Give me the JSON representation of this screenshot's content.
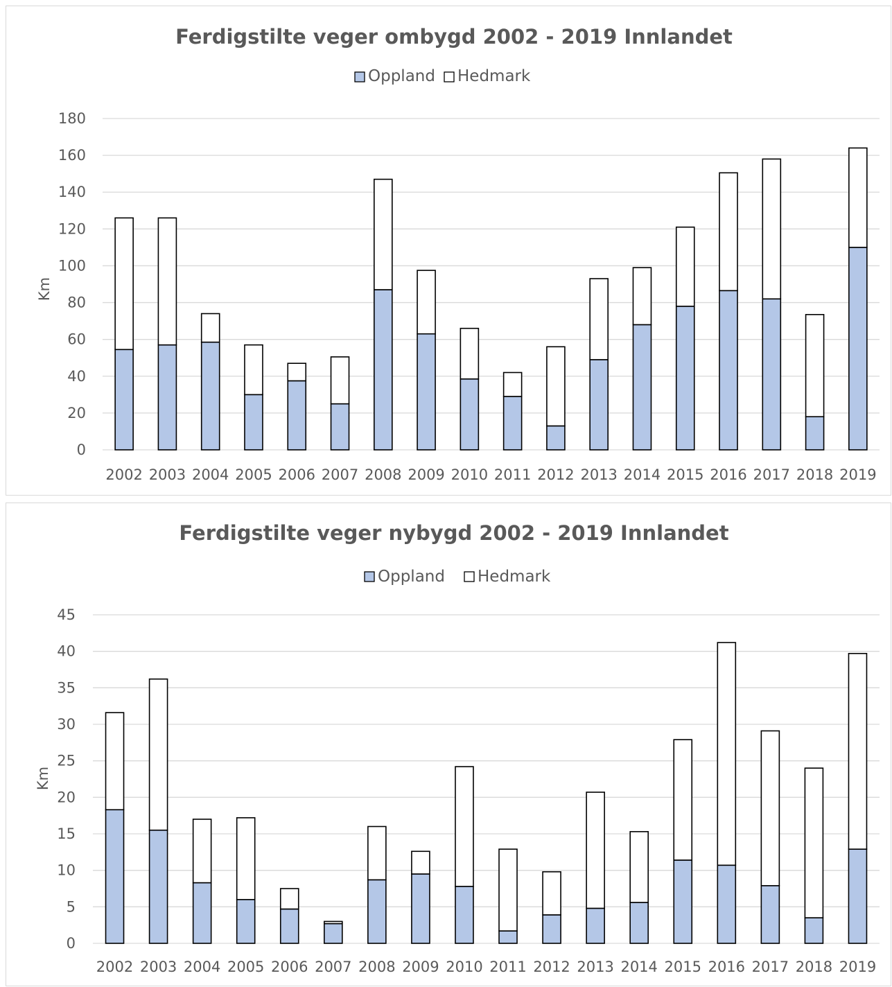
{
  "chart_data": [
    {
      "type": "bar",
      "stacked": true,
      "title": "Ferdigstilte veger ombygd 2002 - 2019 Innlandet",
      "xlabel": "",
      "ylabel": "Km",
      "ylim": [
        0,
        180
      ],
      "yticks": [
        "0",
        "20",
        "40",
        "60",
        "80",
        "100",
        "120",
        "140",
        "160",
        "180"
      ],
      "grid": true,
      "legend_position": "top",
      "categories": [
        "2002",
        "2003",
        "2004",
        "2005",
        "2006",
        "2007",
        "2008",
        "2009",
        "2010",
        "2011",
        "2012",
        "2013",
        "2014",
        "2015",
        "2016",
        "2017",
        "2018",
        "2019"
      ],
      "series": [
        {
          "name": "Oppland",
          "color": "#b4c7e7",
          "values": [
            54.5,
            57,
            58.5,
            30,
            37.5,
            25,
            87,
            63,
            38.5,
            29,
            13,
            49,
            68,
            78,
            86.5,
            82,
            18,
            110
          ]
        },
        {
          "name": "Hedmark",
          "color": "#ffffff",
          "values": [
            71.5,
            69,
            15.5,
            27,
            9.5,
            25.5,
            60,
            34.5,
            27.5,
            13,
            43,
            44,
            31,
            43,
            64,
            76,
            55.5,
            54
          ]
        }
      ]
    },
    {
      "type": "bar",
      "stacked": true,
      "title": "Ferdigstilte veger nybygd 2002 - 2019 Innlandet",
      "xlabel": "",
      "ylabel": "Km",
      "ylim": [
        0,
        45
      ],
      "yticks": [
        "0",
        "5",
        "10",
        "15",
        "20",
        "25",
        "30",
        "35",
        "40",
        "45"
      ],
      "grid": true,
      "legend_position": "top",
      "categories": [
        "2002",
        "2003",
        "2004",
        "2005",
        "2006",
        "2007",
        "2008",
        "2009",
        "2010",
        "2011",
        "2012",
        "2013",
        "2014",
        "2015",
        "2016",
        "2017",
        "2018",
        "2019"
      ],
      "series": [
        {
          "name": "Oppland",
          "color": "#b4c7e7",
          "values": [
            18.3,
            15.5,
            8.3,
            6,
            4.7,
            2.7,
            8.7,
            9.5,
            7.8,
            1.7,
            3.9,
            4.8,
            5.6,
            11.4,
            10.7,
            7.9,
            3.5,
            12.9
          ]
        },
        {
          "name": "Hedmark",
          "color": "#ffffff",
          "values": [
            13.3,
            20.7,
            8.7,
            11.2,
            2.8,
            0.3,
            7.3,
            3.1,
            16.4,
            11.2,
            5.9,
            15.9,
            9.7,
            16.5,
            30.5,
            21.2,
            20.5,
            26.8
          ]
        }
      ]
    }
  ]
}
